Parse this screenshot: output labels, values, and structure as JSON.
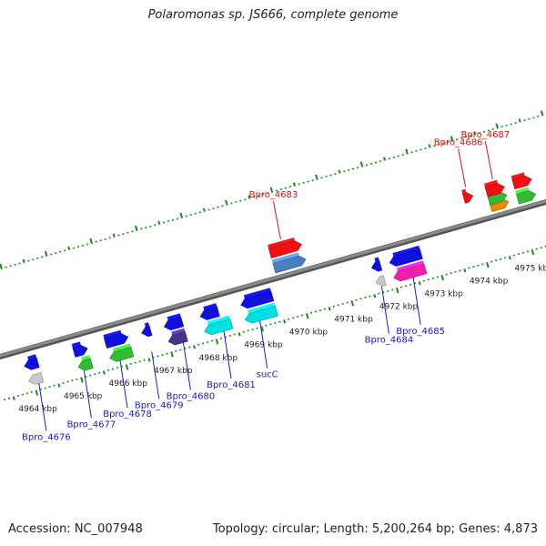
{
  "title": "Polaromonas sp. JS666, complete genome",
  "footer": {
    "accession": "Accession: NC_007948",
    "topology": "Topology: circular; Length: 5,200,264 bp; Genes: 4,873"
  },
  "colors": {
    "backbone": "#8a8a8a",
    "tick": "#1e8a1e",
    "locus_blue": "#1a1acc",
    "locus_red": "#dd1111"
  },
  "coordinates": [
    {
      "label": "4964 kbp",
      "kbp": 4964
    },
    {
      "label": "4965 kbp",
      "kbp": 4965
    },
    {
      "label": "4966 kbp",
      "kbp": 4966
    },
    {
      "label": "4967 kbp",
      "kbp": 4967
    },
    {
      "label": "4968 kbp",
      "kbp": 4968
    },
    {
      "label": "4969 kbp",
      "kbp": 4969
    },
    {
      "label": "4970 kbp",
      "kbp": 4970
    },
    {
      "label": "4971 kbp",
      "kbp": 4971
    },
    {
      "label": "4972 kbp",
      "kbp": 4972
    },
    {
      "label": "4973 kbp",
      "kbp": 4973
    },
    {
      "label": "4974 kbp",
      "kbp": 4974
    },
    {
      "label": "4975 kbp",
      "kbp": 4975
    }
  ],
  "genes": [
    {
      "id": "g1",
      "start": 4963.9,
      "end": 4964.2,
      "color": "#1010dd",
      "strand": "-",
      "track": 1
    },
    {
      "id": "g2",
      "start": 4963.9,
      "end": 4964.2,
      "color": "#c8c8c8",
      "strand": "-",
      "track": 2
    },
    {
      "id": "g3",
      "start": 4965.0,
      "end": 4965.3,
      "color": "#1010dd",
      "strand": "+",
      "track": 1
    },
    {
      "id": "g4",
      "start": 4965.0,
      "end": 4965.3,
      "color": "#33bb33",
      "strand": "-",
      "track": 2
    },
    {
      "id": "g5",
      "start": 4965.7,
      "end": 4966.2,
      "color": "#1010dd",
      "strand": "+",
      "track": 1
    },
    {
      "id": "g6",
      "start": 4965.7,
      "end": 4966.2,
      "color": "#33bb33",
      "strand": "-",
      "track": 2
    },
    {
      "id": "g7",
      "start": 4966.5,
      "end": 4966.7,
      "color": "#1010dd",
      "strand": "-",
      "track": 1
    },
    {
      "id": "g8",
      "start": 4967.0,
      "end": 4967.4,
      "color": "#1010dd",
      "strand": "-",
      "track": 1
    },
    {
      "id": "g9",
      "start": 4967.0,
      "end": 4967.4,
      "color": "#443388",
      "strand": "-",
      "track": 2
    },
    {
      "id": "g10",
      "start": 4967.8,
      "end": 4968.2,
      "color": "#1010dd",
      "strand": "-",
      "track": 1
    },
    {
      "id": "g11",
      "start": 4967.8,
      "end": 4968.4,
      "color": "#00e0e0",
      "strand": "-",
      "track": 2
    },
    {
      "id": "g12",
      "start": 4968.7,
      "end": 4969.4,
      "color": "#1010dd",
      "strand": "-",
      "track": 1
    },
    {
      "id": "g13",
      "start": 4968.7,
      "end": 4969.4,
      "color": "#00e0e0",
      "strand": "-",
      "track": 2
    },
    {
      "id": "g14",
      "start": 4969.6,
      "end": 4970.3,
      "color": "#4a7fbd",
      "strand": "+",
      "track": -1
    },
    {
      "id": "g15",
      "start": 4969.6,
      "end": 4970.3,
      "color": "#ee1111",
      "strand": "+",
      "track": -2
    },
    {
      "id": "g16",
      "start": 4971.6,
      "end": 4971.8,
      "color": "#1010dd",
      "strand": "-",
      "track": 1
    },
    {
      "id": "g17",
      "start": 4971.6,
      "end": 4971.8,
      "color": "#c8c8c8",
      "strand": "-",
      "track": 2
    },
    {
      "id": "g18",
      "start": 4972.0,
      "end": 4972.7,
      "color": "#1010dd",
      "strand": "-",
      "track": 1
    },
    {
      "id": "g19",
      "start": 4972.0,
      "end": 4972.7,
      "color": "#ee22aa",
      "strand": "-",
      "track": 2
    },
    {
      "id": "g20",
      "start": 4973.9,
      "end": 4974.1,
      "color": "#ee1111",
      "strand": "+",
      "track": -2
    },
    {
      "id": "g21",
      "start": 4974.4,
      "end": 4974.8,
      "color": "#ee8800",
      "strand": "+",
      "track": -1
    },
    {
      "id": "g21b",
      "start": 4974.4,
      "end": 4974.8,
      "color": "#33bb33",
      "strand": "+",
      "track": -1.45
    },
    {
      "id": "g22",
      "start": 4974.4,
      "end": 4974.8,
      "color": "#ee1111",
      "strand": "+",
      "track": -2
    },
    {
      "id": "g23",
      "start": 4975.0,
      "end": 4975.4,
      "color": "#33bb33",
      "strand": "+",
      "track": -1
    },
    {
      "id": "g24",
      "start": 4975.0,
      "end": 4975.4,
      "color": "#ee1111",
      "strand": "+",
      "track": -2
    }
  ],
  "labels": [
    {
      "text": "Bpro_4676",
      "side": "below",
      "kbp": 4964.1,
      "color": "#1a1acc"
    },
    {
      "text": "Bpro_4677",
      "side": "below",
      "kbp": 4965.1,
      "color": "#1a1acc"
    },
    {
      "text": "Bpro_4678",
      "side": "below",
      "kbp": 4965.9,
      "color": "#1a1acc"
    },
    {
      "text": "Bpro_4679",
      "side": "below",
      "kbp": 4966.6,
      "color": "#1a1acc"
    },
    {
      "text": "Bpro_4680",
      "side": "below",
      "kbp": 4967.3,
      "color": "#1a1acc"
    },
    {
      "text": "Bpro_4681",
      "side": "below",
      "kbp": 4968.2,
      "color": "#1a1acc"
    },
    {
      "text": "sucC",
      "side": "below",
      "kbp": 4969.0,
      "color": "#1a1acc"
    },
    {
      "text": "Bpro_4683",
      "side": "above",
      "kbp": 4969.9,
      "color": "#dd1111"
    },
    {
      "text": "Bpro_4684",
      "side": "below",
      "kbp": 4971.7,
      "color": "#1a1acc"
    },
    {
      "text": "Bpro_4685",
      "side": "below",
      "kbp": 4972.4,
      "color": "#1a1acc"
    },
    {
      "text": "Bpro_4686",
      "side": "above",
      "kbp": 4974.0,
      "color": "#dd1111"
    },
    {
      "text": "Bpro_4687",
      "side": "above",
      "kbp": 4974.6,
      "color": "#dd1111"
    }
  ]
}
